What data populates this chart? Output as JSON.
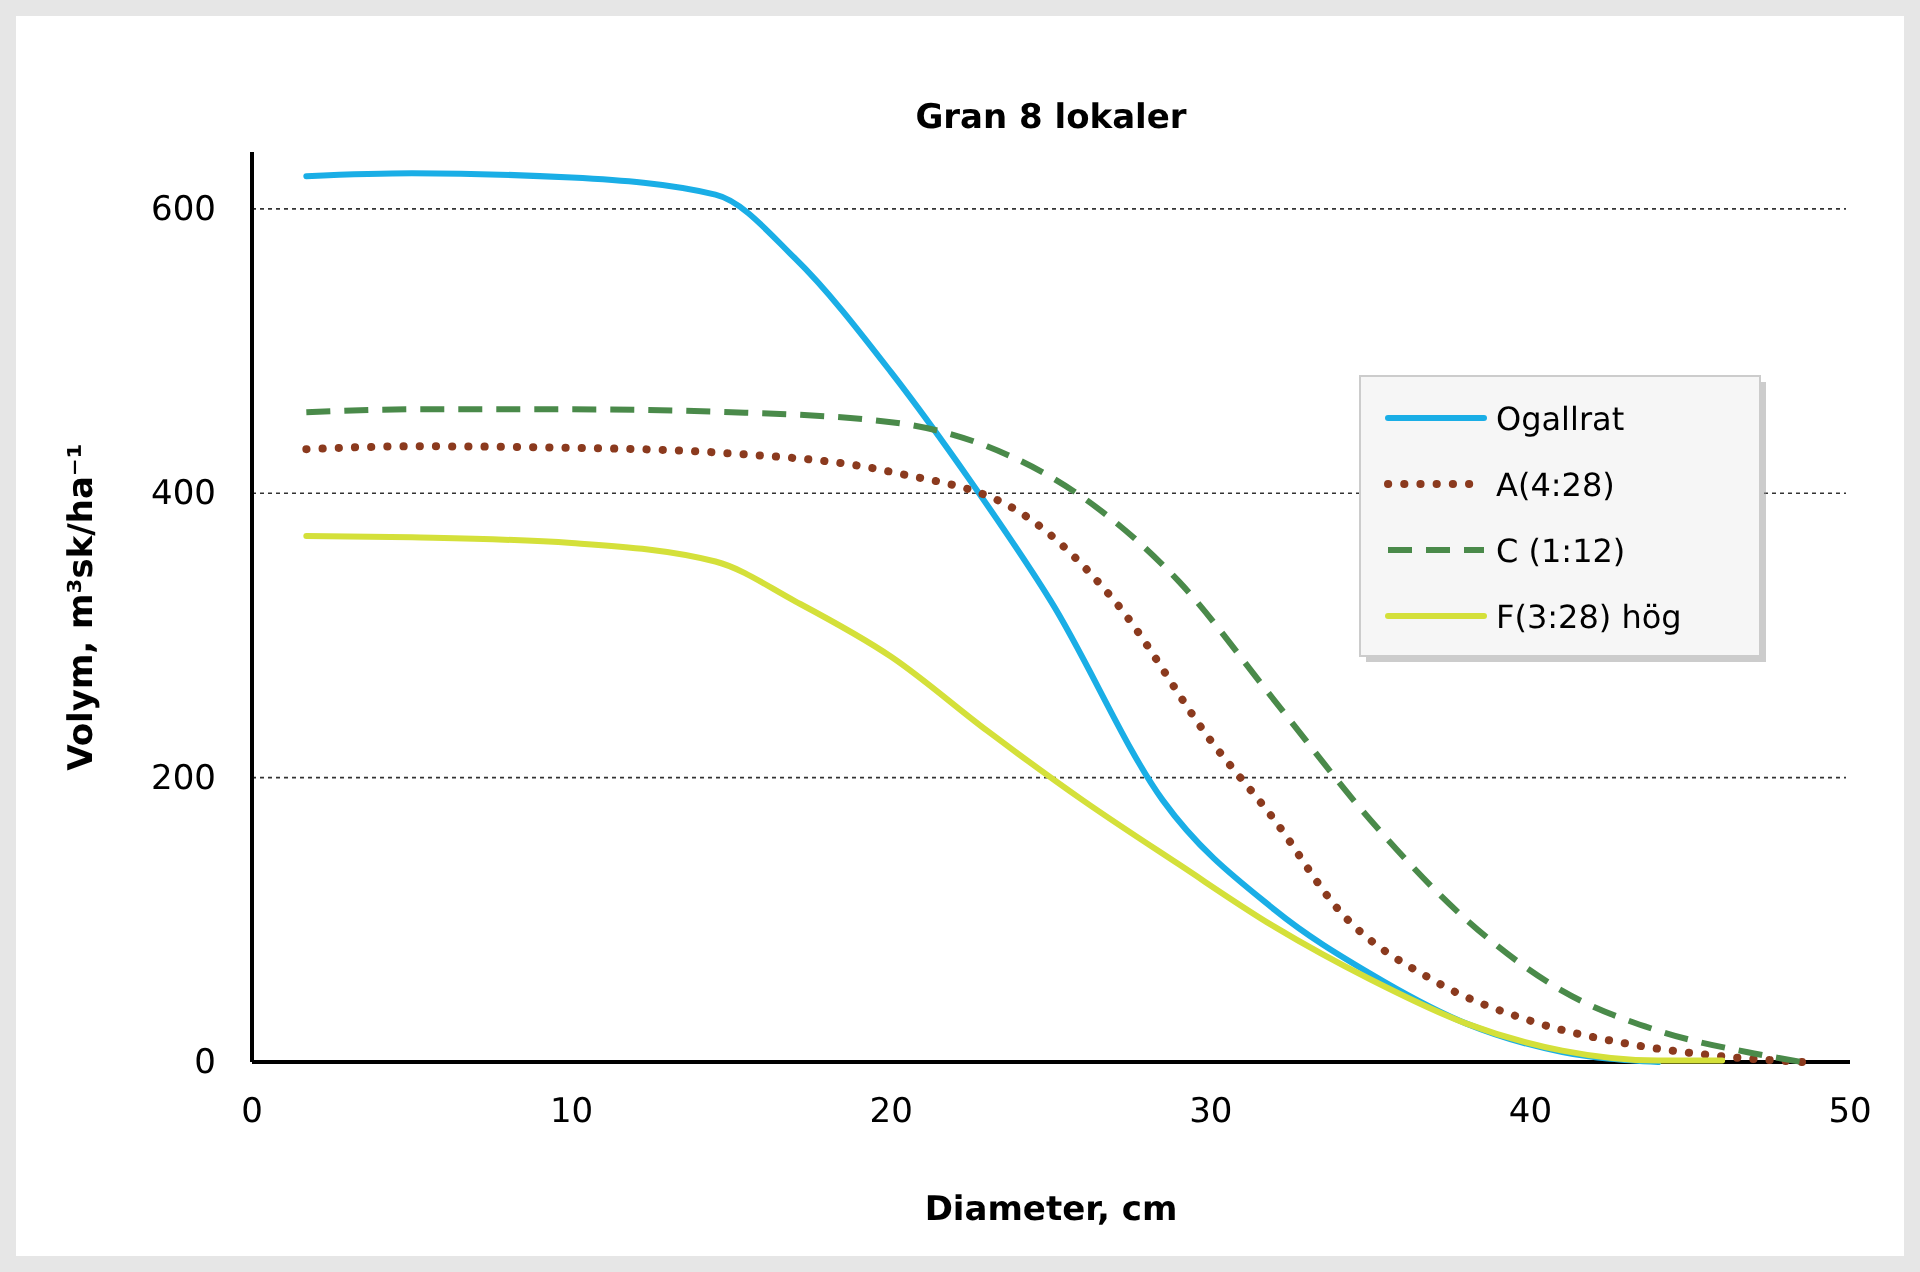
{
  "chart_data": {
    "type": "line",
    "title": "Gran 8 lokaler",
    "xlabel": "Diameter, cm",
    "ylabel": "Volym, m³sk/ha⁻¹",
    "xlim": [
      0,
      50
    ],
    "xticks": [
      0,
      10,
      20,
      30,
      40,
      50
    ],
    "ylim": [
      0,
      640
    ],
    "yticks": [
      0,
      200,
      400,
      600
    ],
    "grid": "y",
    "legend": "right",
    "marker": "none",
    "series": [
      {
        "name": "Ogallrat",
        "color": "#1aaee6",
        "line_style": "solid",
        "x": [
          1.7,
          5,
          10,
          14.5,
          17,
          20,
          22.5,
          25,
          28.5,
          32,
          35,
          38,
          41,
          44
        ],
        "values": [
          623,
          625,
          622,
          610,
          565,
          485,
          408,
          324,
          184,
          107,
          62,
          27,
          7,
          0
        ]
      },
      {
        "name": "A(4:28)",
        "color": "#8b3a1e",
        "line_style": "dotted",
        "x": [
          1.7,
          5,
          10,
          15,
          20,
          24,
          27,
          30,
          32,
          34,
          37,
          40,
          43,
          46,
          48.5
        ],
        "values": [
          431,
          433,
          432,
          428,
          415,
          387,
          324,
          226,
          170,
          107,
          57,
          29,
          13,
          4,
          0
        ]
      },
      {
        "name": "C (1:12)",
        "color": "#4a8a4a",
        "line_style": "dashed",
        "x": [
          1.7,
          5,
          10,
          15,
          20,
          23,
          26,
          29,
          32,
          35,
          38,
          41,
          44,
          47,
          48.5
        ],
        "values": [
          457,
          459,
          459,
          457,
          450,
          433,
          397,
          338,
          254,
          170,
          100,
          50,
          22,
          6,
          0
        ]
      },
      {
        "name": "F(3:28) hög",
        "color": "#d4e03a",
        "line_style": "solid",
        "x": [
          1.7,
          5,
          10,
          14.5,
          17,
          20,
          23,
          26,
          29,
          32,
          35,
          38,
          41,
          44,
          46
        ],
        "values": [
          370,
          369,
          365,
          352,
          324,
          285,
          233,
          184,
          139,
          95,
          58,
          27,
          8,
          1,
          1
        ]
      }
    ]
  }
}
